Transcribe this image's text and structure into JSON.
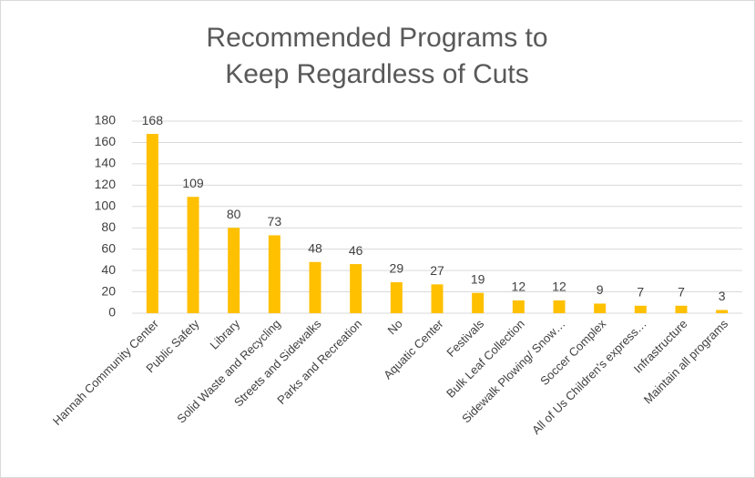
{
  "chart_data": {
    "type": "bar",
    "title": "Recommended Programs to Keep Regardless of Cuts",
    "categories": [
      "Hannah Community Center",
      "Public Safety",
      "Library",
      "Solid Waste and Recycling",
      "Streets and Sidewalks",
      "Parks and Recreation",
      "No",
      "Aquatic Center",
      "Festivals",
      "Bulk Leaf Collection",
      "Sidewalk Plowing/ Snow…",
      "Soccer Complex",
      "All of Us Children's express…",
      "Infrastructure",
      "Maintain all programs"
    ],
    "values": [
      168,
      109,
      80,
      73,
      48,
      46,
      29,
      27,
      19,
      12,
      12,
      9,
      7,
      7,
      3
    ],
    "color": "#ffc000",
    "ylim": [
      0,
      180
    ],
    "yticks": [
      0,
      20,
      40,
      60,
      80,
      100,
      120,
      140,
      160,
      180
    ],
    "grid": true
  }
}
